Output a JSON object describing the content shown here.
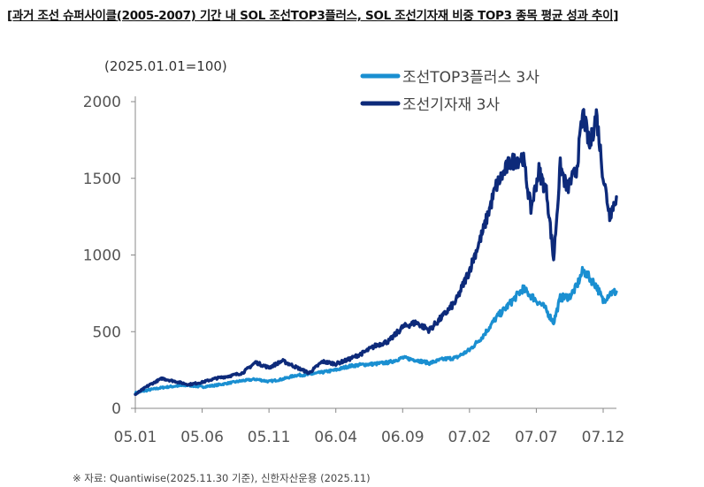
{
  "chart_data": {
    "type": "line",
    "title": "[과거 조선 슈퍼사이클(2005-2007) 기간 내 SOL 조선TOP3플러스, SOL 조선기자재 비중 TOP3 종목 평균 성과 추이]",
    "unit_label": "(2025.01.01=100)",
    "source": "※ 자료: Quantiwise(2025.11.30 기준), 신한자산운용 (2025.11)",
    "xlabel": "",
    "ylabel": "",
    "ylim": [
      0,
      2000
    ],
    "yticks": [
      "0",
      "500",
      "1000",
      "1500",
      "2000"
    ],
    "xticks": [
      "05.01",
      "05.06",
      "05.11",
      "06.04",
      "06.09",
      "07.02",
      "07.07",
      "07.12"
    ],
    "x_range_months": [
      0,
      36
    ],
    "legend_position": "top-right",
    "series": [
      {
        "name": "조선TOP3플러스 3사",
        "color": "#1a8fd1",
        "points": [
          [
            0,
            100
          ],
          [
            1,
            120
          ],
          [
            2,
            135
          ],
          [
            3,
            145
          ],
          [
            4,
            150
          ],
          [
            5,
            140
          ],
          [
            6,
            150
          ],
          [
            7,
            165
          ],
          [
            8,
            180
          ],
          [
            9,
            190
          ],
          [
            10,
            175
          ],
          [
            11,
            190
          ],
          [
            12,
            215
          ],
          [
            13,
            220
          ],
          [
            14,
            235
          ],
          [
            15,
            250
          ],
          [
            16,
            275
          ],
          [
            17,
            285
          ],
          [
            18,
            290
          ],
          [
            19,
            300
          ],
          [
            20,
            330
          ],
          [
            21,
            315
          ],
          [
            22,
            295
          ],
          [
            23,
            320
          ],
          [
            24,
            330
          ],
          [
            25,
            380
          ],
          [
            26,
            470
          ],
          [
            27,
            590
          ],
          [
            28,
            680
          ],
          [
            29,
            780
          ],
          [
            29.8,
            720
          ],
          [
            30.6,
            660
          ],
          [
            31.3,
            560
          ],
          [
            31.8,
            720
          ],
          [
            32.5,
            730
          ],
          [
            33,
            790
          ],
          [
            33.5,
            900
          ],
          [
            34,
            850
          ],
          [
            34.5,
            800
          ],
          [
            35,
            700
          ],
          [
            35.5,
            750
          ],
          [
            36,
            760
          ]
        ]
      },
      {
        "name": "조선기자재 3사",
        "color": "#0d2a7a",
        "points": [
          [
            0,
            90
          ],
          [
            1,
            150
          ],
          [
            2,
            195
          ],
          [
            3,
            175
          ],
          [
            4,
            155
          ],
          [
            5,
            170
          ],
          [
            6,
            195
          ],
          [
            7,
            210
          ],
          [
            8,
            230
          ],
          [
            9,
            300
          ],
          [
            10,
            265
          ],
          [
            11,
            310
          ],
          [
            12,
            270
          ],
          [
            13,
            230
          ],
          [
            14,
            305
          ],
          [
            15,
            290
          ],
          [
            16,
            320
          ],
          [
            17,
            360
          ],
          [
            18,
            410
          ],
          [
            19,
            440
          ],
          [
            20,
            530
          ],
          [
            21,
            560
          ],
          [
            22,
            510
          ],
          [
            23,
            600
          ],
          [
            24,
            700
          ],
          [
            25,
            900
          ],
          [
            26,
            1150
          ],
          [
            27,
            1450
          ],
          [
            28,
            1600
          ],
          [
            29,
            1640
          ],
          [
            29.6,
            1300
          ],
          [
            30.2,
            1550
          ],
          [
            30.8,
            1400
          ],
          [
            31.3,
            970
          ],
          [
            31.8,
            1580
          ],
          [
            32.3,
            1430
          ],
          [
            33,
            1550
          ],
          [
            33.5,
            1930
          ],
          [
            34,
            1700
          ],
          [
            34.5,
            1920
          ],
          [
            35,
            1520
          ],
          [
            35.5,
            1260
          ],
          [
            36,
            1380
          ]
        ]
      }
    ]
  }
}
